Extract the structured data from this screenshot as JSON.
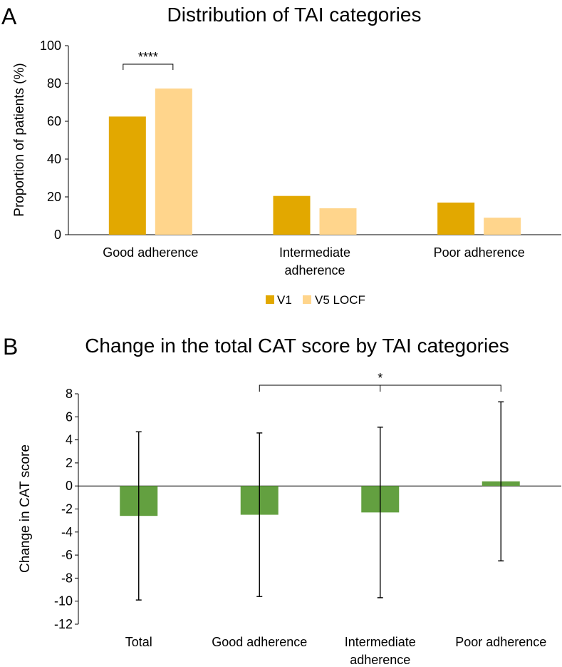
{
  "colors": {
    "v1": "#E2A800",
    "v5": "#FFD58C",
    "change": "#63A040",
    "axis": "#000000"
  },
  "chart_data": [
    {
      "type": "bar",
      "panel_label": "A",
      "title": "Distribution of TAI categories",
      "xlabel": "",
      "ylabel": "Proportion of patients (%)",
      "ylim": [
        0,
        100
      ],
      "yticks": [
        0,
        20,
        40,
        60,
        80,
        100
      ],
      "categories": [
        [
          "Good adherence"
        ],
        [
          "Intermediate",
          "adherence"
        ],
        [
          "Poor adherence"
        ]
      ],
      "series": [
        {
          "name": "V1",
          "values": [
            62.5,
            20.5,
            17.0
          ]
        },
        {
          "name": "V5 LOCF",
          "values": [
            77.3,
            14.0,
            9.0
          ]
        }
      ],
      "legend": {
        "position": "bottom-center",
        "entries": [
          "V1",
          "V5 LOCF"
        ]
      },
      "annotations": [
        {
          "text": "****",
          "between": "Good adherence V1 vs V5 LOCF"
        }
      ]
    },
    {
      "type": "bar",
      "panel_label": "B",
      "title": "Change in the total CAT score by TAI categories",
      "xlabel": "",
      "ylabel": "Change in CAT score",
      "ylim": [
        -12,
        8
      ],
      "yticks": [
        -12,
        -10,
        -8,
        -6,
        -4,
        -2,
        0,
        2,
        4,
        6,
        8
      ],
      "categories": [
        [
          "Total"
        ],
        [
          "Good adherence"
        ],
        [
          "Intermediate",
          "adherence"
        ],
        [
          "Poor adherence"
        ]
      ],
      "values": [
        -2.6,
        -2.5,
        -2.3,
        0.4
      ],
      "error_low": [
        -9.9,
        -9.6,
        -9.7,
        -6.5
      ],
      "error_high": [
        4.7,
        4.6,
        5.1,
        7.3
      ],
      "annotations": [
        {
          "text": "*",
          "between": "Good adherence, Intermediate adherence, Poor adherence"
        }
      ]
    }
  ]
}
